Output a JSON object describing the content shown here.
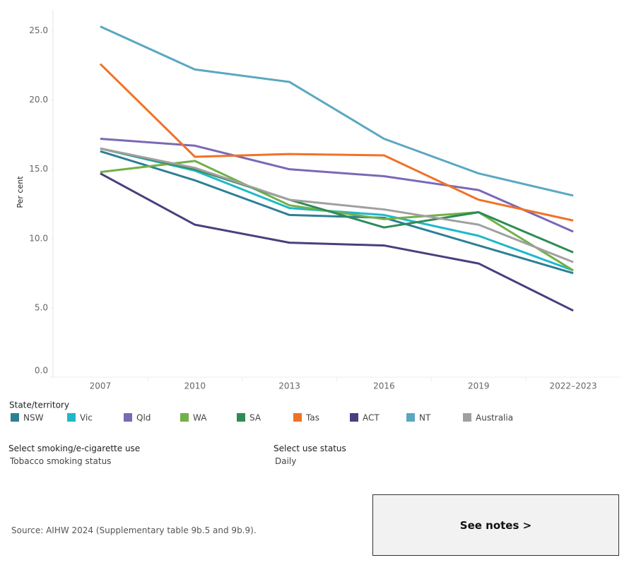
{
  "chart_data": {
    "type": "line",
    "y_label": "Per cent",
    "legend_title": "State/territory",
    "categories": [
      "2007",
      "2010",
      "2013",
      "2016",
      "2019",
      "2022–2023"
    ],
    "ylim": [
      0,
      26.5
    ],
    "yticks": [
      {
        "value": 0,
        "label": "0.0"
      },
      {
        "value": 5,
        "label": "5.0"
      },
      {
        "value": 10,
        "label": "10.0"
      },
      {
        "value": 15,
        "label": "15.0"
      },
      {
        "value": 20,
        "label": "20.0"
      },
      {
        "value": 25,
        "label": "25.0"
      }
    ],
    "grid": false,
    "series": [
      {
        "name": "NSW",
        "color": "#2e7f96",
        "values": [
          16.3,
          14.2,
          11.7,
          11.5,
          9.5,
          7.5
        ]
      },
      {
        "name": "Vic",
        "color": "#1fb8c9",
        "values": [
          16.5,
          14.9,
          12.2,
          11.7,
          10.2,
          7.7
        ]
      },
      {
        "name": "Qld",
        "color": "#7b68b6",
        "values": [
          17.2,
          16.7,
          15.0,
          14.5,
          13.5,
          10.5
        ]
      },
      {
        "name": "WA",
        "color": "#72b04a",
        "values": [
          14.8,
          15.6,
          12.4,
          11.4,
          11.9,
          7.7
        ]
      },
      {
        "name": "SA",
        "color": "#2e8b57",
        "values": [
          16.5,
          15.0,
          12.8,
          10.8,
          11.9,
          9.0
        ]
      },
      {
        "name": "Tas",
        "color": "#f07227",
        "values": [
          22.6,
          15.9,
          16.1,
          16.0,
          12.8,
          11.3
        ]
      },
      {
        "name": "ACT",
        "color": "#4a3f7d",
        "values": [
          14.7,
          11.0,
          9.7,
          9.5,
          8.2,
          4.8
        ]
      },
      {
        "name": "NT",
        "color": "#5ba7c2",
        "values": [
          25.3,
          22.2,
          21.3,
          17.2,
          14.7,
          13.1
        ]
      },
      {
        "name": "Australia",
        "color": "#a0a0a0",
        "values": [
          16.5,
          15.1,
          12.8,
          12.1,
          11.0,
          8.3
        ]
      }
    ]
  },
  "controls": [
    {
      "label": "Select smoking/e-cigarette use",
      "value": "Tobacco smoking status"
    },
    {
      "label": "Select use status",
      "value": "Daily"
    }
  ],
  "source": "Source: AIHW 2024 (Supplementary table 9b.5 and 9b.9).",
  "button": "See notes >"
}
